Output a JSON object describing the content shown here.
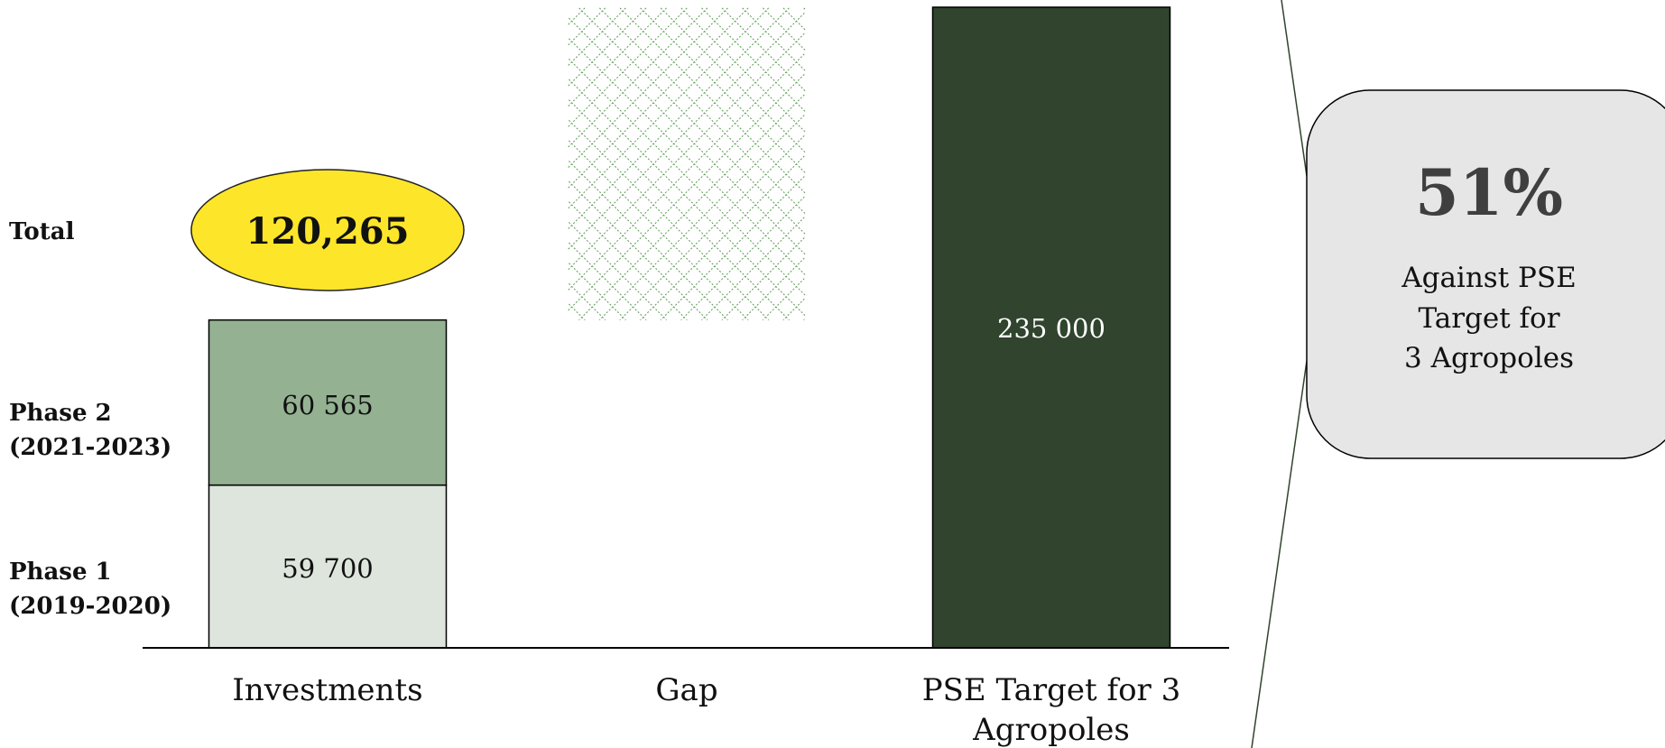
{
  "chart_data": {
    "type": "bar",
    "categories": [
      "Investments",
      "Gap",
      "PSE Target for 3 Agropoles"
    ],
    "series": [
      {
        "name": "Phase 1\n(2019-2020)",
        "values": [
          59700,
          0,
          0
        ],
        "labels": [
          "59 700",
          "",
          ""
        ],
        "color": "#dde5dd"
      },
      {
        "name": "Phase 2\n(2021-2023)",
        "values": [
          60565,
          0,
          0
        ],
        "labels": [
          "60 565",
          "",
          ""
        ],
        "color": "#94b292"
      },
      {
        "name": "Gap",
        "values": [
          0,
          114735,
          0
        ],
        "labels": [
          "",
          "",
          ""
        ],
        "base": 120265,
        "color": "#5a9a52",
        "pattern": "crosshatch"
      },
      {
        "name": "PSE Target",
        "values": [
          0,
          0,
          235000
        ],
        "labels": [
          "",
          "",
          "235 000"
        ],
        "color": "#30442e"
      }
    ],
    "total": {
      "label": "Total",
      "value": "120,265",
      "color": "#fde52a"
    },
    "ylim": [
      0,
      235000
    ],
    "grid": false,
    "legend": "left",
    "callout": {
      "big": "51%",
      "lines": [
        "Against PSE",
        "Target for",
        "3 Agropoles"
      ],
      "fill": "#e6e6e6"
    }
  }
}
